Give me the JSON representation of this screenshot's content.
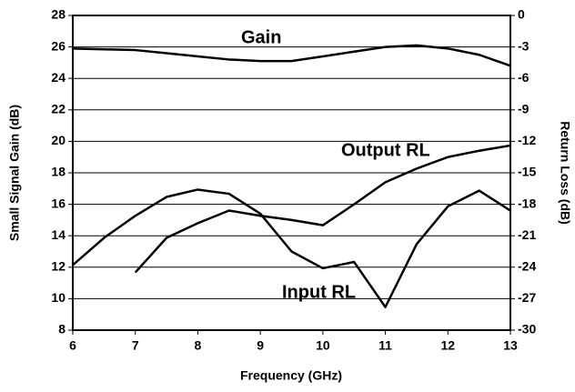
{
  "chart_data": {
    "type": "line",
    "xlabel": "Frequency (GHz)",
    "ylabel": "Small Signal Gain (dB)",
    "y2label": "Return Loss (dB)",
    "x": [
      6,
      6.5,
      7,
      7.5,
      8,
      8.5,
      9,
      9.5,
      10,
      10.5,
      11,
      11.5,
      12,
      12.5,
      13
    ],
    "xlim": [
      6,
      13
    ],
    "xticks": [
      6,
      7,
      8,
      9,
      10,
      11,
      12,
      13
    ],
    "ylim": [
      8,
      28
    ],
    "yticks": [
      8,
      10,
      12,
      14,
      16,
      18,
      20,
      22,
      24,
      26,
      28
    ],
    "y2lim": [
      -30,
      0
    ],
    "y2ticks": [
      -30,
      -27,
      -24,
      -21,
      -18,
      -15,
      -12,
      -9,
      -6,
      -3,
      0
    ],
    "grid": true,
    "series": [
      {
        "name": "Gain",
        "color": "#000000",
        "values": [
          25.9,
          25.85,
          25.8,
          25.6,
          25.4,
          25.2,
          25.1,
          25.1,
          25.4,
          25.7,
          26.0,
          26.1,
          25.9,
          25.5,
          24.8
        ]
      },
      {
        "name": "Output RL",
        "color": "#000000",
        "axis": "y2",
        "values": [
          null,
          null,
          -24.5,
          -21.2,
          -19.8,
          -18.6,
          -19.1,
          -19.5,
          -20.0,
          -18.0,
          -15.9,
          -14.6,
          -13.5,
          -12.9,
          -12.4
        ]
      },
      {
        "name": "Input RL",
        "color": "#000000",
        "axis": "y2",
        "values": [
          -23.8,
          -21.2,
          -19.1,
          -17.3,
          -16.6,
          -17.0,
          -18.9,
          -22.5,
          -24.1,
          -23.5,
          -27.8,
          -21.8,
          -18.2,
          -16.7,
          -18.6
        ]
      }
    ]
  }
}
